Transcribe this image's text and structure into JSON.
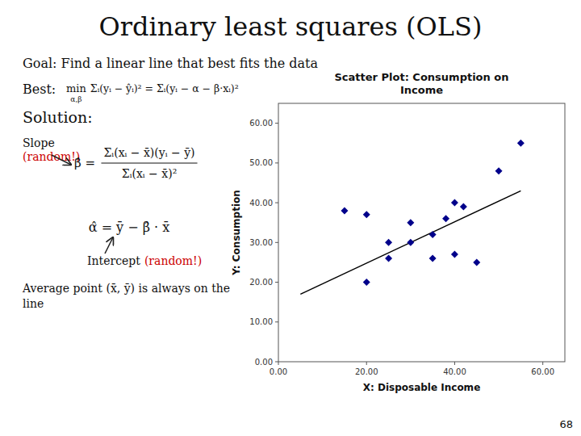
{
  "chart_data": {
    "type": "scatter",
    "title": "Scatter Plot: Consumption on\nIncome",
    "x_label": "X:  Disposable Income",
    "y_label": "Y: Consumption",
    "xlim": [
      0,
      65
    ],
    "ylim": [
      0,
      65
    ],
    "xticks": [
      {
        "value": 0,
        "label": "0.00"
      },
      {
        "value": 20,
        "label": "20.00"
      },
      {
        "value": 40,
        "label": "40.00"
      },
      {
        "value": 60,
        "label": "60.00"
      }
    ],
    "yticks": [
      {
        "value": 0,
        "label": "0.00"
      },
      {
        "value": 10,
        "label": "10.00"
      },
      {
        "value": 20,
        "label": "20.00"
      },
      {
        "value": 30,
        "label": "30.00"
      },
      {
        "value": 40,
        "label": "40.00"
      },
      {
        "value": 50,
        "label": "50.00"
      },
      {
        "value": 60,
        "label": "60.00"
      }
    ],
    "grid": false,
    "series": [
      {
        "type": "scatter",
        "marker": "diamond",
        "color": "#00008B",
        "x": [
          15,
          20,
          20,
          25,
          25,
          30,
          30,
          35,
          35,
          38,
          40,
          40,
          42,
          45,
          50,
          55
        ],
        "values": [
          38,
          37,
          20,
          30,
          26,
          35,
          30,
          32,
          26,
          36,
          40,
          27,
          39,
          25,
          48,
          55
        ]
      },
      {
        "type": "line",
        "color": "black",
        "x": [
          5,
          55
        ],
        "values": [
          17,
          43
        ]
      }
    ],
    "annotations": [
      {
        "text": "Ordinary least squares (OLS)"
      },
      {
        "text": "Goal: Find a linear line that best fits the data"
      },
      {
        "text": "Best:"
      },
      {
        "text": "min"
      },
      {
        "text": "α,β"
      },
      {
        "text": "Σᵢ(yᵢ − ŷᵢ)² = Σᵢ(yᵢ − α − β·xᵢ)²"
      },
      {
        "text": "Solution:"
      },
      {
        "text": "Slope"
      },
      {
        "text": "(random!)",
        "color": "#CC0000"
      },
      {
        "text": "β̂ ="
      },
      {
        "text": "Σᵢ(xᵢ − x̄)(yᵢ − ȳ)"
      },
      {
        "text": "Σᵢ(xᵢ − x̄)²"
      },
      {
        "text": "α̂ = ȳ − β̂ · x̄"
      },
      {
        "text": "Intercept"
      },
      {
        "text": "(random!)",
        "color": "#CC0000"
      },
      {
        "text": "Average point (x̄, ȳ)  is always on the"
      },
      {
        "text": "line"
      },
      {
        "text": "68"
      }
    ]
  }
}
